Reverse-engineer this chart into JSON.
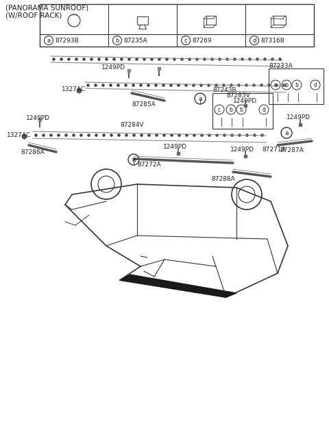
{
  "title_lines": [
    "(PANORAMA SUNROOF)",
    "(W/ROOF RACK)"
  ],
  "background_color": "#ffffff",
  "line_color": "#333333",
  "text_color": "#222222",
  "figsize": [
    4.8,
    6.44
  ],
  "dpi": 100,
  "legend_items": [
    {
      "letter": "a",
      "code": "87293B"
    },
    {
      "letter": "b",
      "code": "87235A"
    },
    {
      "letter": "c",
      "code": "87269"
    },
    {
      "letter": "d",
      "code": "87316B"
    }
  ]
}
